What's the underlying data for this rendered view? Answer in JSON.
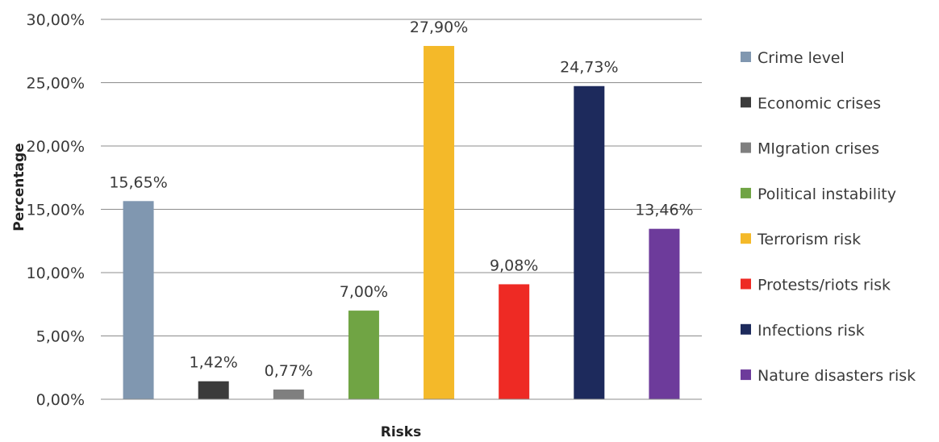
{
  "chart_data": {
    "type": "bar",
    "title": "",
    "xlabel": "Risks",
    "ylabel": "Percentage",
    "ylim": [
      0,
      30
    ],
    "y_ticks": [
      "0,00%",
      "5,00%",
      "10,00%",
      "15,00%",
      "20,00%",
      "25,00%",
      "30,00%"
    ],
    "grid": true,
    "legend_position": "right",
    "categories": [
      "Crime level",
      "Economic crises",
      "MIgration crises",
      "Political instability",
      "Terrorism risk",
      "Protests/riots risk",
      "Infections risk",
      "Nature disasters risk"
    ],
    "values": [
      15.65,
      1.42,
      0.77,
      7.0,
      27.9,
      9.08,
      24.73,
      13.46
    ],
    "value_labels": [
      "15,65%",
      "1,42%",
      "0,77%",
      "7,00%",
      "27,90%",
      "9,08%",
      "24,73%",
      "13,46%"
    ],
    "colors": [
      "#8097b0",
      "#3b3b3b",
      "#7f7f7f",
      "#70a444",
      "#f4b929",
      "#ee2a24",
      "#1d2a5c",
      "#6d3b9b"
    ]
  }
}
